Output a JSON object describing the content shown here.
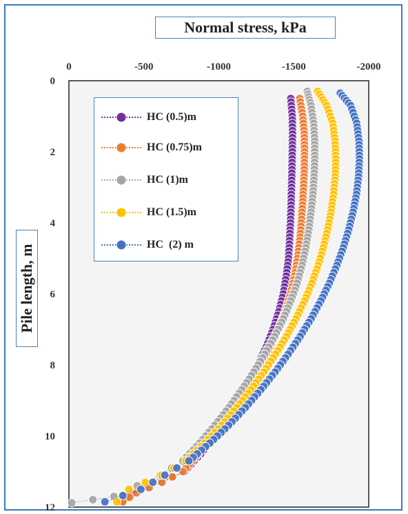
{
  "chart_data": {
    "type": "scatter",
    "title": "Normal stress, kPa",
    "xlabel": "Normal stress, kPa",
    "ylabel": "Pile length, m",
    "x_ticks": [
      "0",
      "-500",
      "-1000",
      "-1500",
      "-2000"
    ],
    "y_ticks": [
      "0",
      "2",
      "4",
      "6",
      "8",
      "10",
      "12"
    ],
    "xlim": [
      0,
      -2000
    ],
    "ylim": [
      0,
      12
    ],
    "x_axis_position": "top",
    "y_reversed": true,
    "grid": false,
    "legend_position": "top-left",
    "marker": "circle",
    "line_style": "dotted",
    "series": [
      {
        "name": "HC (0.5)m",
        "color": "#7030a0",
        "x": [
          -1480,
          -1490,
          -1492,
          -1490,
          -1488,
          -1485,
          -1482,
          -1478,
          -1472,
          -1465,
          -1450,
          -1430,
          -1400,
          -1362,
          -1315,
          -1260,
          -1195,
          -1125,
          -1050,
          -970,
          -880,
          -770,
          -620,
          -430,
          -350
        ],
        "y": [
          0.5,
          1,
          1.5,
          2,
          2.5,
          3,
          3.5,
          4,
          4.5,
          5,
          5.5,
          6,
          6.5,
          7,
          7.5,
          8,
          8.5,
          9,
          9.5,
          10,
          10.5,
          11,
          11.3,
          11.6,
          11.85
        ]
      },
      {
        "name": "HC (0.75)m",
        "color": "#ed7d31",
        "x": [
          -1540,
          -1560,
          -1570,
          -1572,
          -1570,
          -1565,
          -1558,
          -1550,
          -1540,
          -1525,
          -1505,
          -1478,
          -1442,
          -1397,
          -1342,
          -1280,
          -1210,
          -1133,
          -1050,
          -960,
          -865,
          -760,
          -620,
          -450,
          -360
        ],
        "y": [
          0.5,
          1,
          1.5,
          2,
          2.5,
          3,
          3.5,
          4,
          4.5,
          5,
          5.5,
          6,
          6.5,
          7,
          7.5,
          8,
          8.5,
          9,
          9.5,
          10,
          10.5,
          11,
          11.3,
          11.6,
          11.85
        ]
      },
      {
        "name": "HC (1)m",
        "color": "#a5a5a5",
        "x": [
          -1590,
          -1615,
          -1633,
          -1640,
          -1640,
          -1636,
          -1628,
          -1615,
          -1600,
          -1580,
          -1555,
          -1522,
          -1480,
          -1430,
          -1372,
          -1306,
          -1233,
          -1153,
          -1066,
          -973,
          -872,
          -760,
          -610,
          -300,
          -20
        ],
        "y": [
          0.3,
          0.7,
          1.2,
          1.7,
          2.2,
          2.7,
          3.2,
          3.7,
          4.2,
          4.7,
          5.2,
          5.7,
          6.2,
          6.7,
          7.2,
          7.7,
          8.2,
          8.7,
          9.2,
          9.7,
          10.2,
          10.7,
          11.1,
          11.7,
          11.88
        ]
      },
      {
        "name": "HC (1.5)m",
        "color": "#ffc000",
        "x": [
          -1660,
          -1720,
          -1760,
          -1775,
          -1780,
          -1776,
          -1765,
          -1748,
          -1725,
          -1697,
          -1662,
          -1620,
          -1571,
          -1514,
          -1450,
          -1378,
          -1300,
          -1214,
          -1120,
          -1018,
          -905,
          -780,
          -620,
          -400,
          -320
        ],
        "y": [
          0.3,
          0.7,
          1.2,
          1.7,
          2.2,
          2.7,
          3.2,
          3.7,
          4.2,
          4.7,
          5.2,
          5.7,
          6.2,
          6.7,
          7.2,
          7.7,
          8.2,
          8.7,
          9.2,
          9.7,
          10.2,
          10.7,
          11.1,
          11.5,
          11.85
        ]
      },
      {
        "name": "HC  (2) m",
        "color": "#4472c4",
        "x": [
          -1810,
          -1880,
          -1920,
          -1935,
          -1938,
          -1932,
          -1918,
          -1895,
          -1866,
          -1830,
          -1787,
          -1737,
          -1680,
          -1615,
          -1542,
          -1462,
          -1375,
          -1280,
          -1177,
          -1065,
          -940,
          -800,
          -640,
          -480,
          -240
        ],
        "y": [
          0.35,
          0.7,
          1.2,
          1.7,
          2.2,
          2.7,
          3.2,
          3.7,
          4.2,
          4.7,
          5.2,
          5.7,
          6.2,
          6.7,
          7.2,
          7.7,
          8.2,
          8.7,
          9.2,
          9.7,
          10.2,
          10.7,
          11.1,
          11.5,
          11.85
        ]
      }
    ]
  }
}
